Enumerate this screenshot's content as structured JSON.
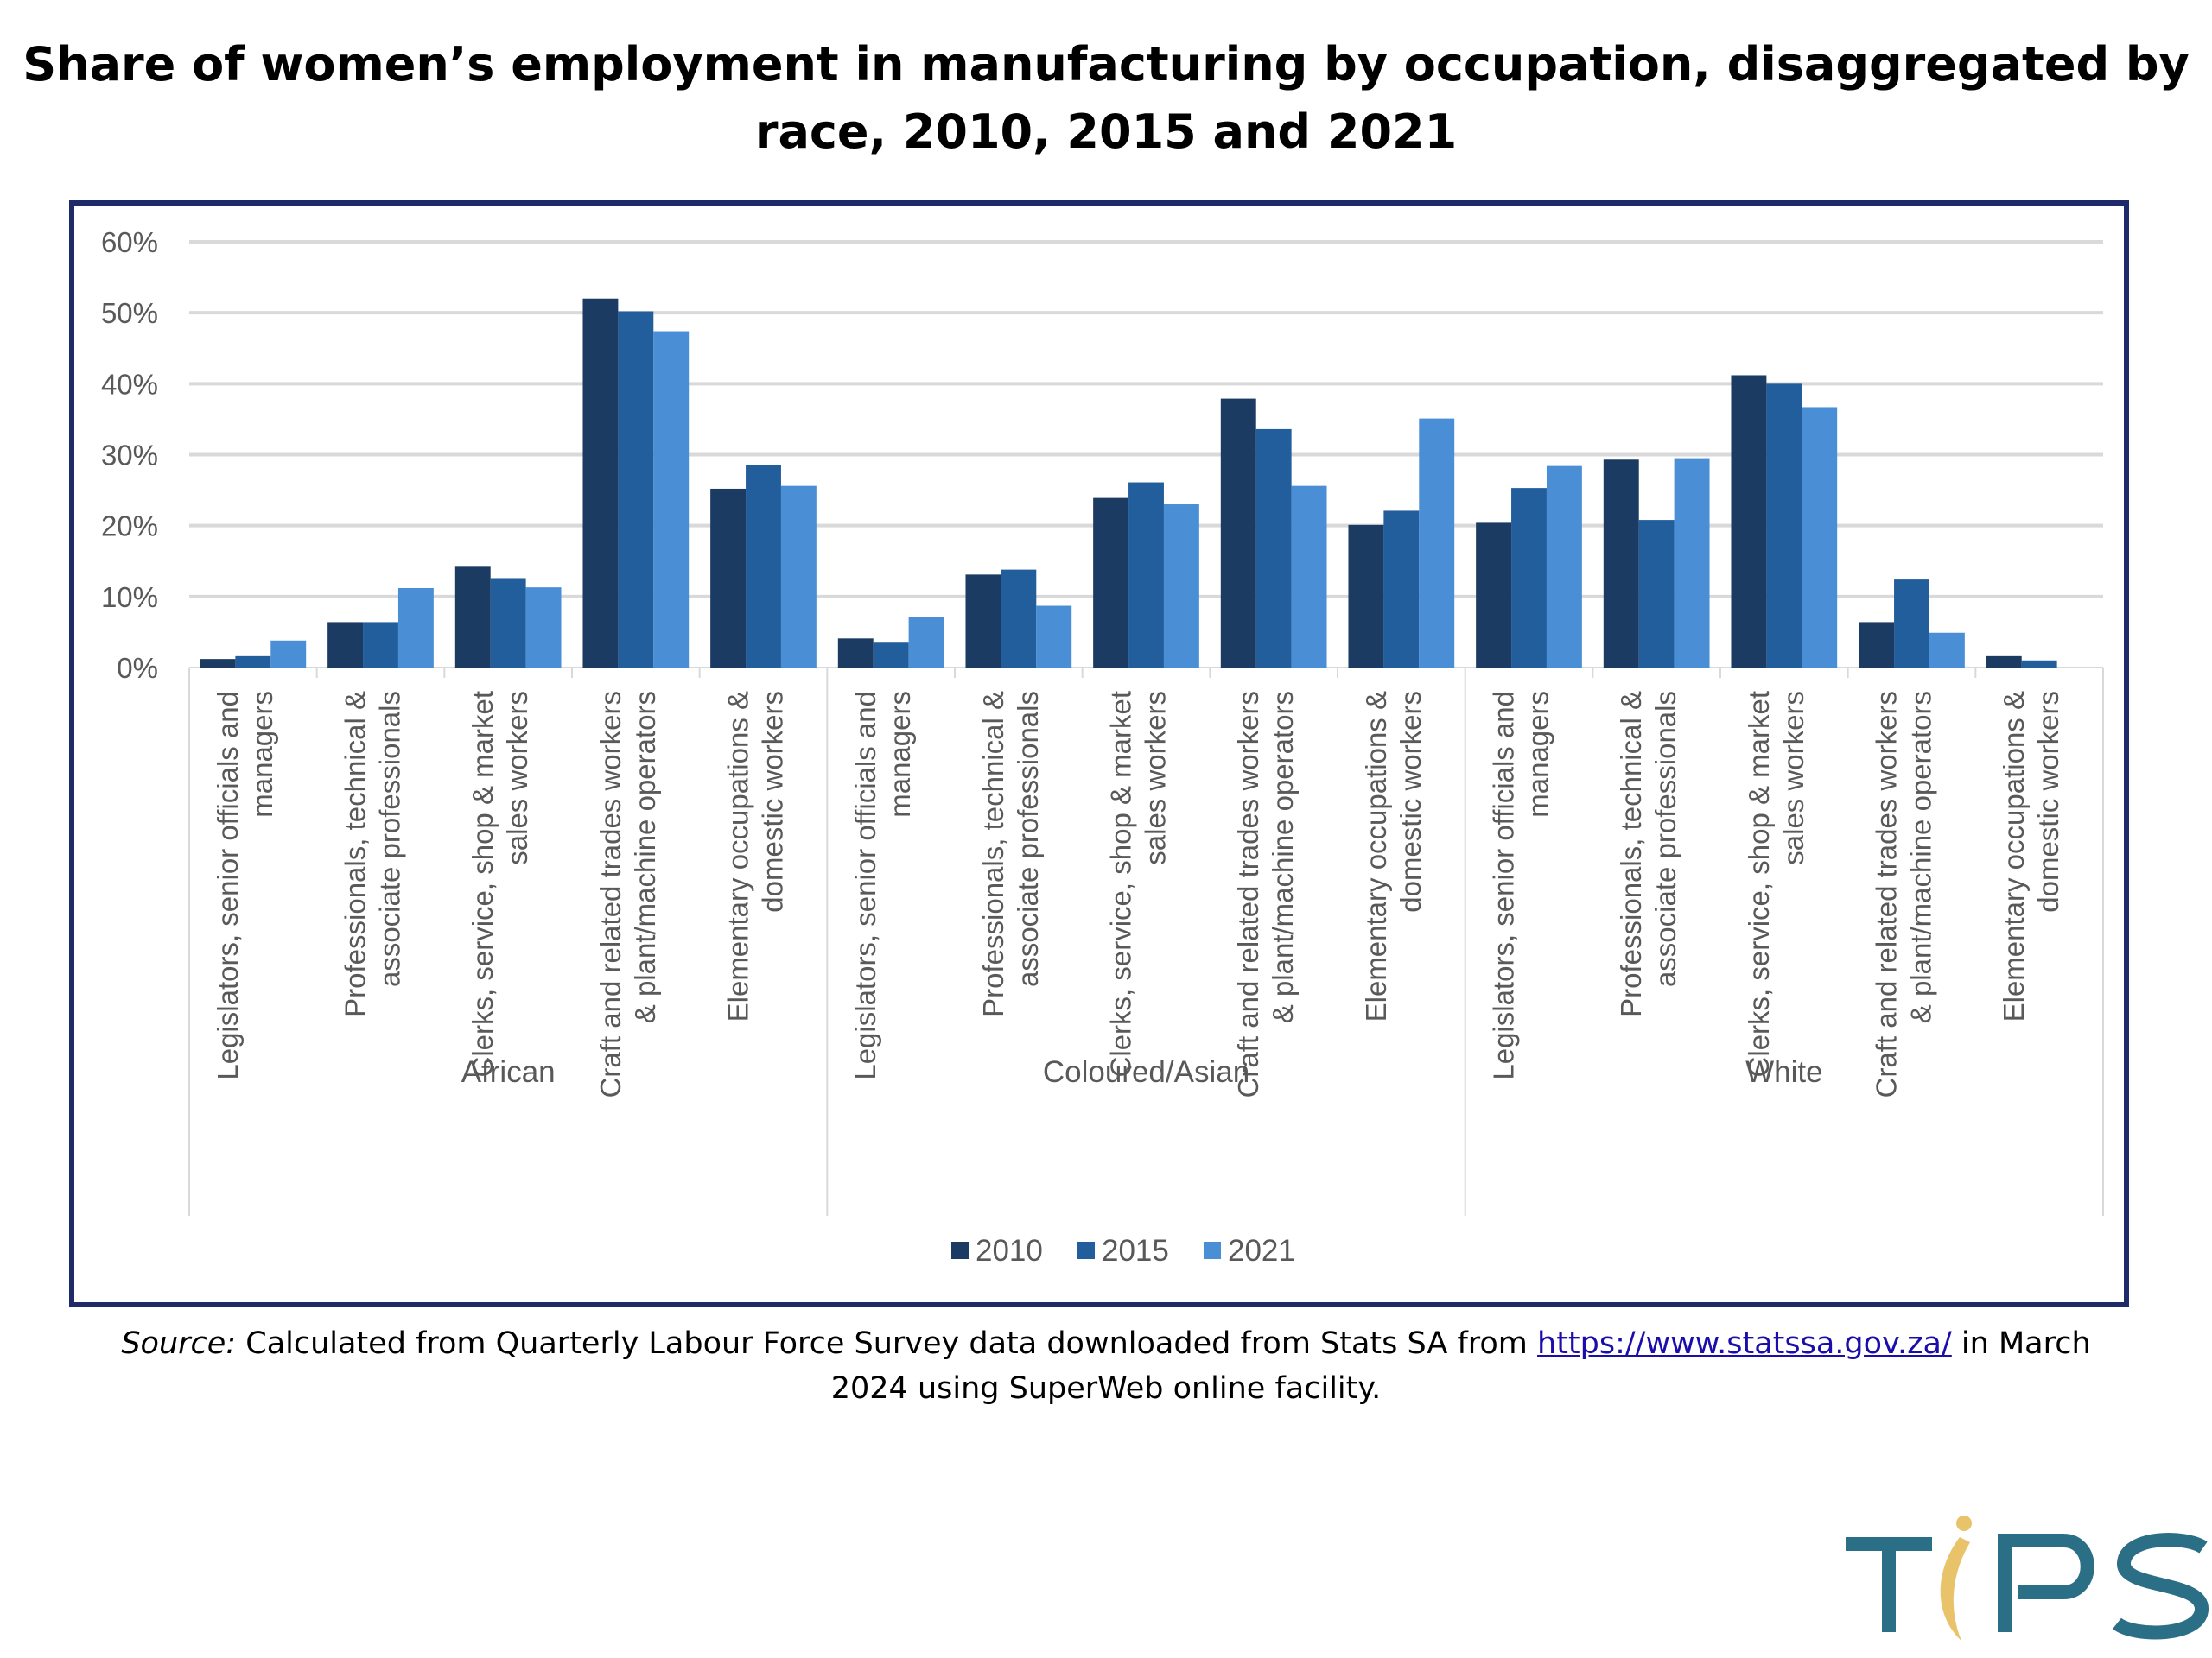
{
  "title": {
    "line1": "Share of women’s employment in manufacturing by occupation, disaggregated by",
    "line2": "race, 2010, 2015 and 2021"
  },
  "chart_data": {
    "type": "bar",
    "yaxis": {
      "min": 0,
      "max": 0.6,
      "step": 0.1,
      "ticks": [
        "0%",
        "10%",
        "20%",
        "30%",
        "40%",
        "50%",
        "60%"
      ]
    },
    "grid": true,
    "legend_position": "bottom",
    "series_colors": [
      "#1b3b63",
      "#225e9b",
      "#4a8fd6"
    ],
    "series": [
      {
        "name": "2010",
        "values": [
          0.012,
          0.064,
          0.142,
          0.52,
          0.252,
          0.041,
          0.131,
          0.239,
          0.379,
          0.201,
          0.204,
          0.293,
          0.412,
          0.064,
          0.016
        ]
      },
      {
        "name": "2015",
        "values": [
          0.016,
          0.064,
          0.126,
          0.502,
          0.285,
          0.035,
          0.138,
          0.261,
          0.336,
          0.221,
          0.253,
          0.208,
          0.4,
          0.124,
          0.01
        ]
      },
      {
        "name": "2021",
        "values": [
          0.038,
          0.112,
          0.113,
          0.474,
          0.256,
          0.071,
          0.087,
          0.23,
          0.256,
          0.351,
          0.284,
          0.295,
          0.367,
          0.049,
          0.0
        ]
      }
    ],
    "groups": [
      {
        "name": "African",
        "categories": [
          [
            "Legislators, senior officials and",
            "managers"
          ],
          [
            "Professionals, technical &",
            "associate professionals"
          ],
          [
            "Clerks, service, shop & market",
            "sales workers"
          ],
          [
            "Craft and related trades workers",
            "& plant/machine operators"
          ],
          [
            "Elementary occupations &",
            "domestic workers"
          ]
        ]
      },
      {
        "name": "Coloured/Asian",
        "categories": [
          [
            "Legislators, senior officials and",
            "managers"
          ],
          [
            "Professionals, technical &",
            "associate professionals"
          ],
          [
            "Clerks, service, shop & market",
            "sales workers"
          ],
          [
            "Craft and related trades workers",
            "& plant/machine operators"
          ],
          [
            "Elementary occupations &",
            "domestic workers"
          ]
        ]
      },
      {
        "name": "White",
        "categories": [
          [
            "Legislators, senior officials and",
            "managers"
          ],
          [
            "Professionals, technical &",
            "associate professionals"
          ],
          [
            "Clerks, service, shop & market",
            "sales workers"
          ],
          [
            "Craft and related trades workers",
            "& plant/machine operators"
          ],
          [
            "Elementary occupations &",
            "domestic workers"
          ]
        ]
      }
    ]
  },
  "source": {
    "label": "Source:",
    "text_before_link": " Calculated from Quarterly Labour Force Survey data downloaded from Stats SA from ",
    "link_text": "https://www.statssa.gov.za/",
    "text_after_link": " in March",
    "line2": "2024 using SuperWeb online facility."
  },
  "logo": {
    "text": "TIPS",
    "colors": {
      "teal": "#2a6f86",
      "gold": "#e8c36a"
    }
  }
}
